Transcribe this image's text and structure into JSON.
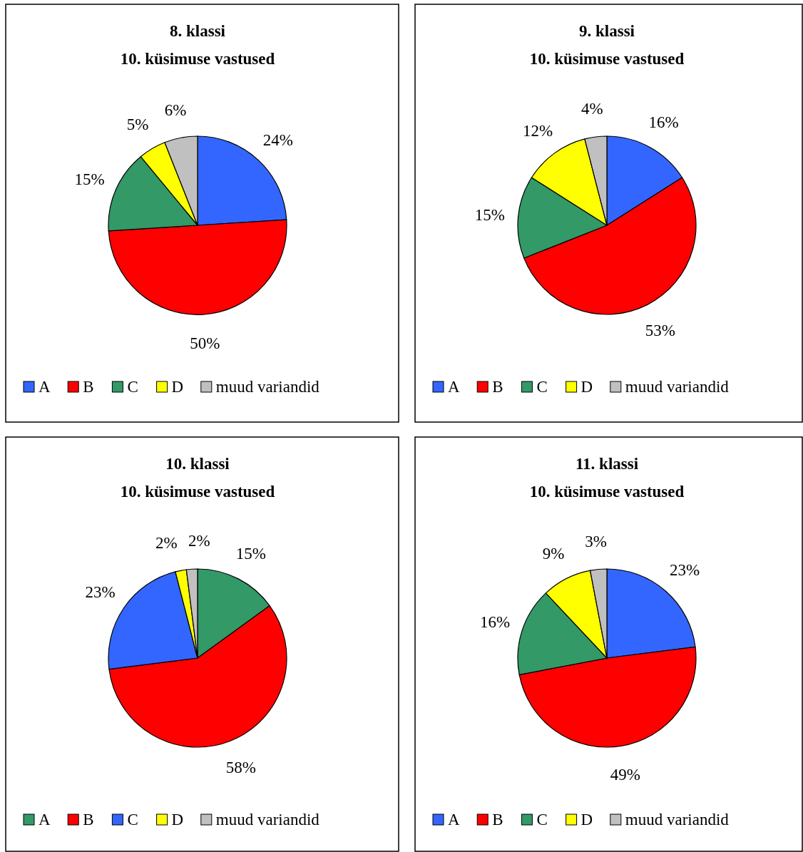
{
  "chart_data": [
    {
      "type": "pie",
      "title": "8. klassi",
      "subtitle": "10. küsimuse vastused",
      "categories": [
        "A",
        "B",
        "C",
        "D",
        "muud variandid"
      ],
      "values": [
        24,
        50,
        15,
        5,
        6
      ],
      "value_labels": [
        "24%",
        "50%",
        "15%",
        "5%",
        "6%"
      ],
      "colors": [
        "#3366ff",
        "#ff0000",
        "#339966",
        "#ffff00",
        "#c0c0c0"
      ],
      "legend": "bottom"
    },
    {
      "type": "pie",
      "title": "9. klassi",
      "subtitle": "10. küsimuse vastused",
      "categories": [
        "A",
        "B",
        "C",
        "D",
        "muud variandid"
      ],
      "values": [
        16,
        53,
        15,
        12,
        4
      ],
      "value_labels": [
        "16%",
        "53%",
        "15%",
        "12%",
        "4%"
      ],
      "colors": [
        "#3366ff",
        "#ff0000",
        "#339966",
        "#ffff00",
        "#c0c0c0"
      ],
      "legend": "bottom"
    },
    {
      "type": "pie",
      "title": "10. klassi",
      "subtitle": "10. küsimuse vastused",
      "categories": [
        "A",
        "B",
        "C",
        "D",
        "muud variandid"
      ],
      "values": [
        15,
        58,
        23,
        2,
        2
      ],
      "value_labels": [
        "15%",
        "58%",
        "23%",
        "2%",
        "2%"
      ],
      "colors": [
        "#339966",
        "#ff0000",
        "#3366ff",
        "#ffff00",
        "#c0c0c0"
      ],
      "legend": "bottom"
    },
    {
      "type": "pie",
      "title": "11. klassi",
      "subtitle": "10. küsimuse vastused",
      "categories": [
        "A",
        "B",
        "C",
        "D",
        "muud variandid"
      ],
      "values": [
        23,
        49,
        16,
        9,
        3
      ],
      "value_labels": [
        "23%",
        "49%",
        "16%",
        "9%",
        "3%"
      ],
      "colors": [
        "#3366ff",
        "#ff0000",
        "#339966",
        "#ffff00",
        "#c0c0c0"
      ],
      "legend": "bottom"
    }
  ]
}
